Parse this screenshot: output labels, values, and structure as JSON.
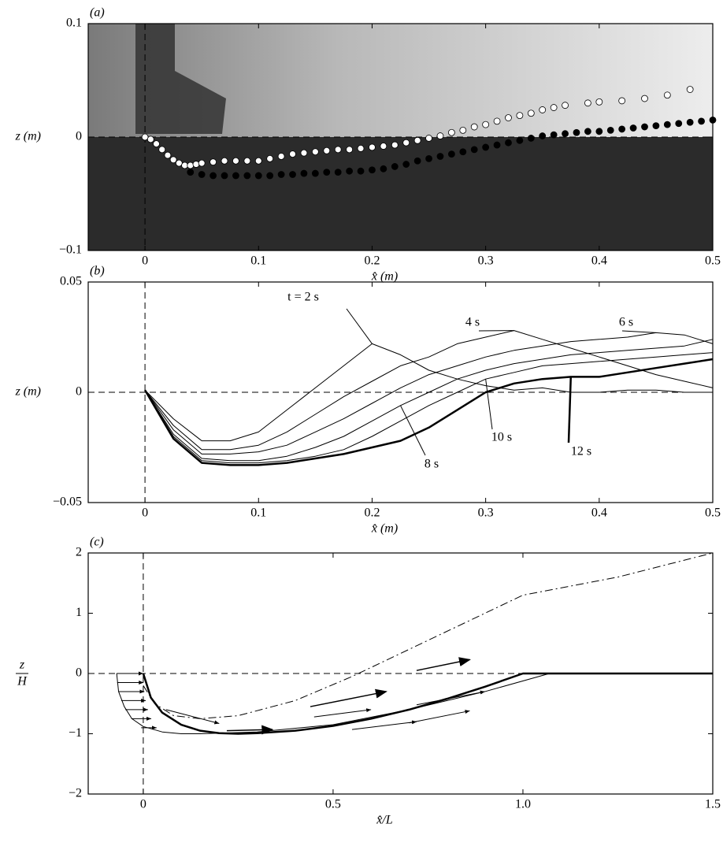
{
  "chart_data": [
    {
      "type": "scatter",
      "panel": "(a)",
      "xlabel": "x̂ (m)",
      "ylabel": "z (m)",
      "xlim": [
        -0.05,
        0.5
      ],
      "ylim": [
        -0.1,
        0.1
      ],
      "xticks": [
        0,
        0.1,
        0.2,
        0.3,
        0.4,
        0.5
      ],
      "yticks": [
        {
          "value": -0.1,
          "label": "−0.1"
        },
        0,
        0.1
      ],
      "zero_lines": true,
      "series": [
        {
          "color": "#ffffff",
          "x": [
            0,
            0.005,
            0.01,
            0.015,
            0.02,
            0.025,
            0.03,
            0.035,
            0.04,
            0.045,
            0.05,
            0.06,
            0.07,
            0.08,
            0.09,
            0.1,
            0.11,
            0.12,
            0.13,
            0.14,
            0.15,
            0.16,
            0.17,
            0.18,
            0.19,
            0.2,
            0.21,
            0.22,
            0.23,
            0.24,
            0.25,
            0.26,
            0.27,
            0.28,
            0.29,
            0.3,
            0.31,
            0.32,
            0.33,
            0.34,
            0.35,
            0.36,
            0.37,
            0.39,
            0.4,
            0.42,
            0.44,
            0.46,
            0.48
          ],
          "values": [
            0,
            -0.002,
            -0.006,
            -0.011,
            -0.016,
            -0.02,
            -0.023,
            -0.025,
            -0.025,
            -0.024,
            -0.023,
            -0.022,
            -0.021,
            -0.021,
            -0.021,
            -0.021,
            -0.019,
            -0.017,
            -0.015,
            -0.014,
            -0.013,
            -0.012,
            -0.011,
            -0.011,
            -0.01,
            -0.009,
            -0.008,
            -0.007,
            -0.005,
            -0.003,
            -0.001,
            0.001,
            0.004,
            0.006,
            0.009,
            0.011,
            0.014,
            0.017,
            0.019,
            0.021,
            0.024,
            0.026,
            0.028,
            0.03,
            0.031,
            0.032,
            0.034,
            0.037,
            0.042
          ]
        },
        {
          "color": "#000000",
          "x": [
            0.04,
            0.05,
            0.06,
            0.07,
            0.08,
            0.09,
            0.1,
            0.11,
            0.12,
            0.13,
            0.14,
            0.15,
            0.16,
            0.17,
            0.18,
            0.19,
            0.2,
            0.21,
            0.22,
            0.23,
            0.24,
            0.25,
            0.26,
            0.27,
            0.28,
            0.29,
            0.3,
            0.31,
            0.32,
            0.33,
            0.34,
            0.35,
            0.36,
            0.37,
            0.38,
            0.39,
            0.4,
            0.41,
            0.42,
            0.43,
            0.44,
            0.45,
            0.46,
            0.47,
            0.48,
            0.49,
            0.5
          ],
          "values": [
            -0.031,
            -0.033,
            -0.034,
            -0.034,
            -0.034,
            -0.034,
            -0.034,
            -0.034,
            -0.033,
            -0.033,
            -0.032,
            -0.032,
            -0.031,
            -0.031,
            -0.03,
            -0.03,
            -0.029,
            -0.028,
            -0.026,
            -0.024,
            -0.021,
            -0.019,
            -0.017,
            -0.015,
            -0.013,
            -0.011,
            -0.009,
            -0.007,
            -0.005,
            -0.003,
            -0.001,
            0.001,
            0.002,
            0.003,
            0.004,
            0.005,
            0.005,
            0.006,
            0.007,
            0.008,
            0.009,
            0.01,
            0.011,
            0.012,
            0.013,
            0.014,
            0.015
          ]
        }
      ]
    },
    {
      "type": "line",
      "panel": "(b)",
      "xlabel": "x̂ (m)",
      "ylabel": "z (m)",
      "xlim": [
        -0.05,
        0.5
      ],
      "ylim": [
        -0.05,
        0.05
      ],
      "xticks": [
        0,
        0.1,
        0.2,
        0.3,
        0.4,
        0.5
      ],
      "yticks": [
        {
          "value": -0.05,
          "label": "−0.05"
        },
        0,
        0.05
      ],
      "zero_lines": true,
      "x": [
        0,
        0.025,
        0.05,
        0.075,
        0.1,
        0.125,
        0.15,
        0.175,
        0.2,
        0.225,
        0.25,
        0.275,
        0.3,
        0.325,
        0.35,
        0.375,
        0.4,
        0.425,
        0.45,
        0.475,
        0.5
      ],
      "series": [
        {
          "name": "t = 2 s",
          "color": "#000000",
          "linewidth": 1,
          "values": [
            0.001,
            -0.012,
            -0.022,
            -0.022,
            -0.018,
            -0.008,
            0.002,
            0.012,
            0.022,
            0.017,
            0.01,
            0.006,
            0.003,
            0.001,
            0.002,
            0,
            0,
            0.001,
            0.001,
            0,
            0
          ]
        },
        {
          "name": "4 s",
          "color": "#000000",
          "linewidth": 1,
          "values": [
            0.001,
            -0.015,
            -0.026,
            -0.026,
            -0.024,
            -0.018,
            -0.01,
            -0.002,
            0.005,
            0.012,
            0.016,
            0.022,
            0.025,
            0.028,
            0.024,
            0.02,
            0.016,
            0.012,
            0.008,
            0.005,
            0.002
          ]
        },
        {
          "name": "6 s",
          "color": "#000000",
          "linewidth": 1,
          "values": [
            0.001,
            -0.017,
            -0.028,
            -0.028,
            -0.027,
            -0.024,
            -0.018,
            -0.012,
            -0.005,
            0.002,
            0.008,
            0.012,
            0.016,
            0.019,
            0.021,
            0.023,
            0.024,
            0.025,
            0.027,
            0.026,
            0.022
          ]
        },
        {
          "name": "8 s",
          "color": "#000000",
          "linewidth": 1,
          "values": [
            0.001,
            -0.019,
            -0.03,
            -0.031,
            -0.031,
            -0.029,
            -0.025,
            -0.02,
            -0.013,
            -0.006,
            0,
            0.006,
            0.01,
            0.013,
            0.015,
            0.017,
            0.018,
            0.019,
            0.02,
            0.021,
            0.024
          ]
        },
        {
          "name": "10 s",
          "color": "#000000",
          "linewidth": 1,
          "values": [
            0.001,
            -0.02,
            -0.031,
            -0.032,
            -0.032,
            -0.031,
            -0.029,
            -0.026,
            -0.02,
            -0.013,
            -0.006,
            0,
            0.006,
            0.009,
            0.012,
            0.013,
            0.014,
            0.015,
            0.016,
            0.017,
            0.018
          ]
        },
        {
          "name": "12 s",
          "color": "#000000",
          "linewidth": 2.5,
          "values": [
            0.001,
            -0.021,
            -0.032,
            -0.033,
            -0.033,
            -0.032,
            -0.03,
            -0.028,
            -0.025,
            -0.022,
            -0.016,
            -0.008,
            0,
            0.004,
            0.006,
            0.007,
            0.007,
            0.009,
            0.011,
            0.013,
            0.015
          ]
        }
      ]
    },
    {
      "type": "line",
      "panel": "(c)",
      "xlabel": "x̂/L",
      "ylabel": {
        "numerator": "z",
        "denominator": "H"
      },
      "xlim": [
        -0.145,
        1.5
      ],
      "ylim": [
        -2,
        2
      ],
      "xticks": [
        0,
        0.5,
        {
          "value": 1,
          "label": "1.0"
        },
        1.5
      ],
      "yticks": [
        {
          "value": -2,
          "label": "−2"
        },
        {
          "value": -1,
          "label": "−1"
        },
        0,
        1,
        2
      ],
      "zero_lines": true,
      "series": [
        {
          "color": "#000000",
          "linewidth": 2.5,
          "x": [
            0,
            0.02,
            0.05,
            0.1,
            0.15,
            0.2,
            0.25,
            0.3,
            0.4,
            0.5,
            0.6,
            0.7,
            0.8,
            0.9,
            1,
            1.25,
            1.5
          ],
          "values": [
            0,
            -0.4,
            -0.65,
            -0.85,
            -0.95,
            -0.99,
            -1,
            -0.99,
            -0.95,
            -0.87,
            -0.75,
            -0.6,
            -0.42,
            -0.22,
            0,
            0,
            0
          ]
        },
        {
          "color": "#000000",
          "linewidth": 1,
          "x": [
            -0.07,
            -0.065,
            -0.05,
            -0.03,
            0,
            0.05,
            0.1,
            0.15,
            0.2,
            0.3,
            0.5,
            0.7,
            0.9,
            1.07
          ],
          "values": [
            0,
            -0.3,
            -0.55,
            -0.75,
            -0.88,
            -0.97,
            -1,
            -1,
            -0.99,
            -0.97,
            -0.85,
            -0.6,
            -0.3,
            0
          ]
        },
        {
          "color": "#000000",
          "linewidth": 1,
          "dash": "dashdot",
          "x": [
            0,
            0.03,
            0.08,
            0.15,
            0.25,
            0.4,
            0.55,
            0.7,
            0.85,
            1,
            1.25,
            1.5
          ],
          "values": [
            -0.2,
            -0.5,
            -0.7,
            -0.75,
            -0.7,
            -0.45,
            -0.05,
            0.4,
            0.85,
            1.3,
            1.6,
            2
          ]
        }
      ]
    }
  ]
}
